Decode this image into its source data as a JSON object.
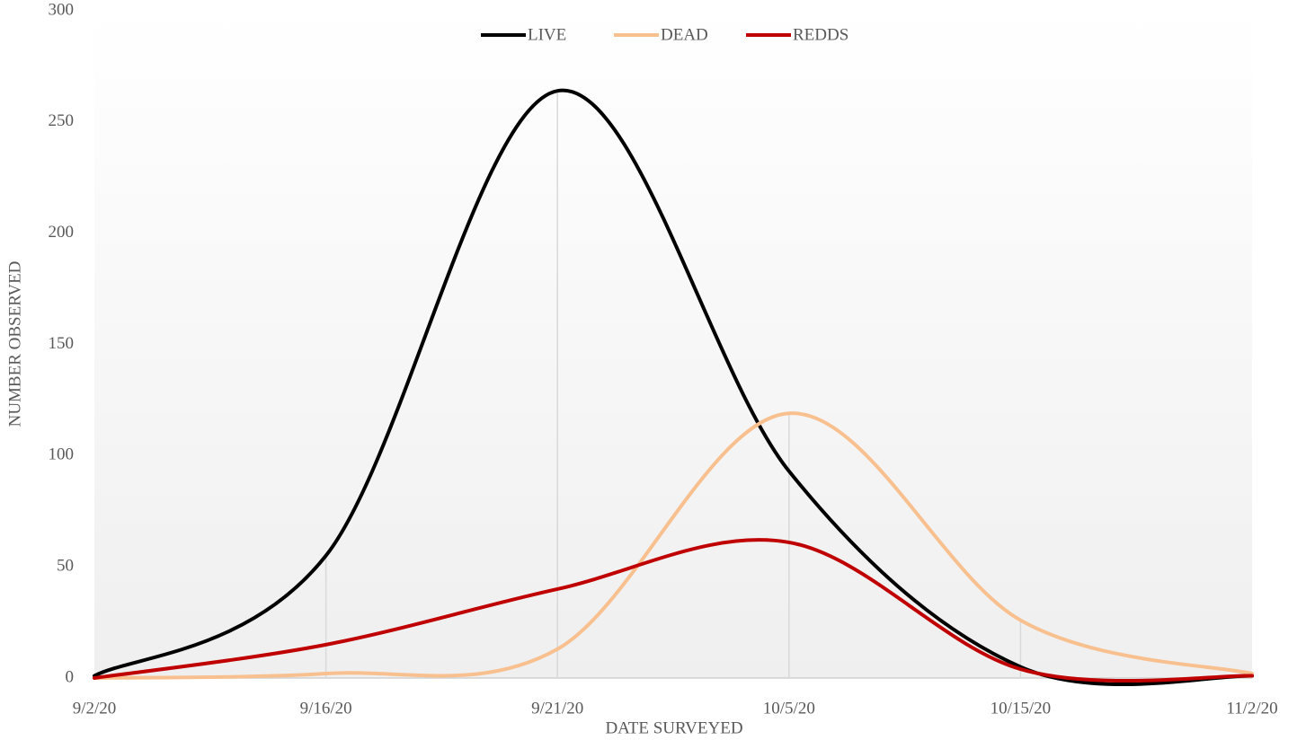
{
  "chart_data": {
    "type": "line",
    "categories": [
      "9/2/20",
      "9/16/20",
      "9/21/20",
      "10/5/20",
      "10/15/20",
      "11/2/20"
    ],
    "series": [
      {
        "name": "LIVE",
        "color": "#000000",
        "values": [
          1,
          55,
          264,
          93,
          5,
          1
        ]
      },
      {
        "name": "DEAD",
        "color": "#f8c08f",
        "values": [
          0,
          2,
          13,
          119,
          26,
          2
        ]
      },
      {
        "name": "REDDS",
        "color": "#c00000",
        "values": [
          0,
          15,
          40,
          61,
          4,
          1
        ]
      }
    ],
    "x_label": "DATE SURVEYED",
    "y_label": "NUMBER OBSERVED",
    "ylim": [
      0,
      300
    ],
    "yticks": [
      0,
      50,
      100,
      150,
      200,
      250,
      300
    ],
    "smooth": true,
    "drop_lines": true,
    "legend": "top"
  }
}
